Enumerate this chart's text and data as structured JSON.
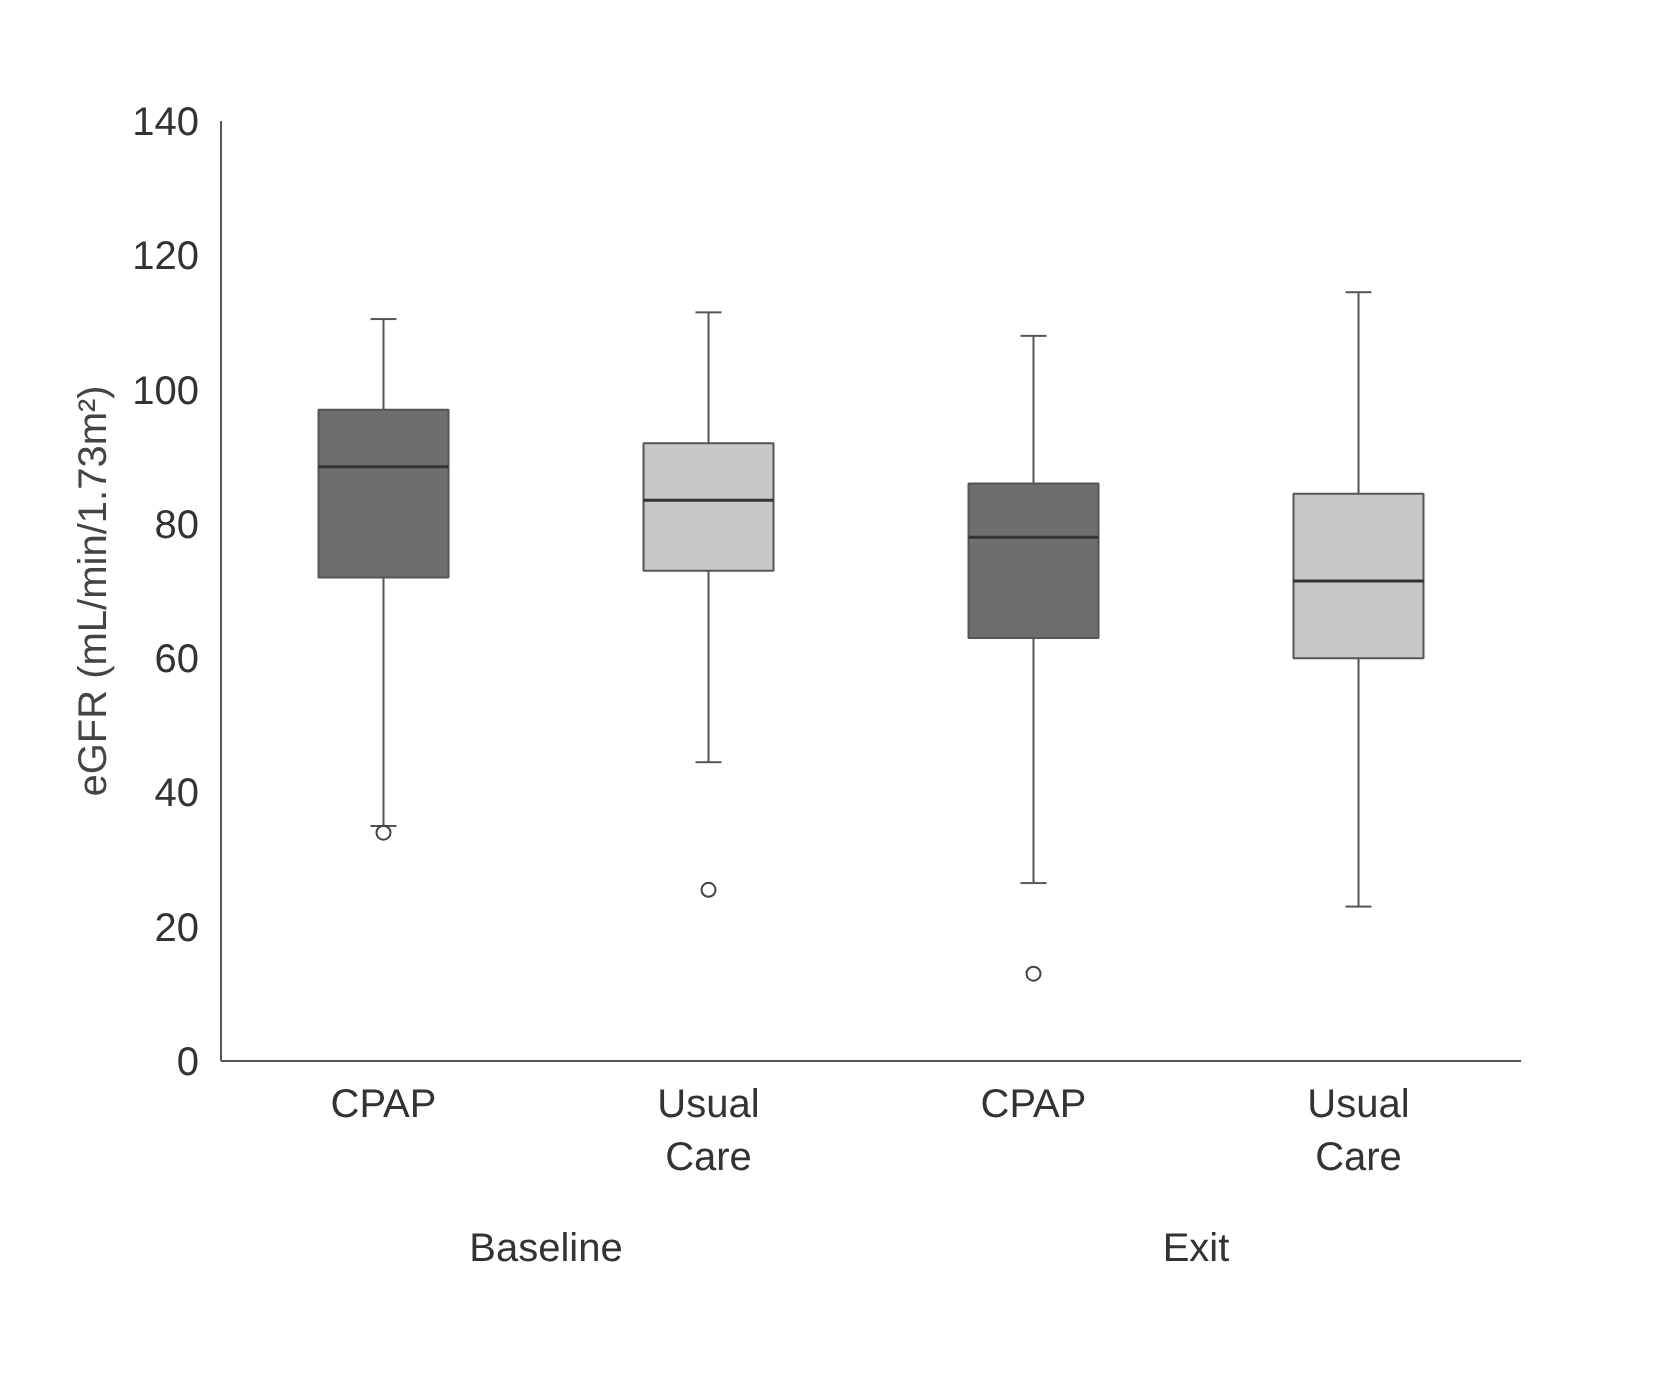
{
  "chart_data": {
    "type": "box",
    "ylabel": "eGFR (mL/min/1.73m²)",
    "categories": [
      "CPAP",
      "Usual Care",
      "CPAP",
      "Usual Care"
    ],
    "colors": [
      "#6e6e6e",
      "#c8c8c8",
      "#6e6e6e",
      "#c8c8c8"
    ],
    "boxes": [
      {
        "low": 35,
        "q1": 72,
        "median": 88.5,
        "q3": 97,
        "high": 110.5,
        "outliers": [
          34
        ]
      },
      {
        "low": 44.5,
        "q1": 73,
        "median": 83.5,
        "q3": 92,
        "high": 111.5,
        "outliers": [
          25.5
        ]
      },
      {
        "low": 26.5,
        "q1": 63,
        "median": 78,
        "q3": 86,
        "high": 108,
        "outliers": [
          13
        ]
      },
      {
        "low": 23,
        "q1": 60,
        "median": 71.5,
        "q3": 84.5,
        "high": 114.5
      }
    ],
    "annotations": [
      "Baseline",
      "Exit"
    ],
    "ylim": [
      0,
      140
    ],
    "yticks": [
      0,
      20,
      40,
      60,
      80,
      100,
      120,
      140
    ],
    "grid": false
  }
}
